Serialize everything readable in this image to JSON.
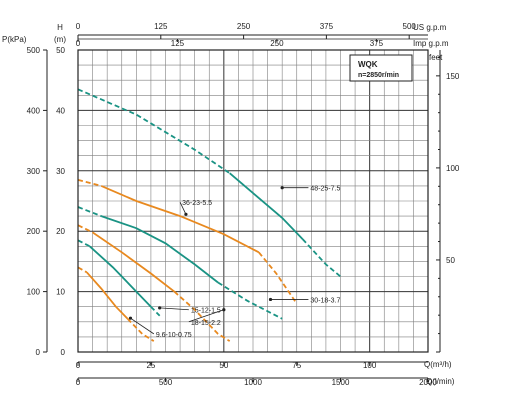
{
  "colors": {
    "green": "#1a9384",
    "orange": "#e8891f",
    "grid": "#7f7f7f",
    "frame": "#222222",
    "text": "#222222"
  },
  "labels": {
    "flow_us_unit": "US g.p.m",
    "flow_imp_unit": "Imp g.p.m",
    "pressure_unit": "P(kPa)",
    "head_unit_top": "H",
    "head_unit_sub": "(m)",
    "feet_unit": "feet",
    "flow_m3h_unit": "Q(m³/h)",
    "flow_lmin_unit": "Q(l/min)"
  },
  "legend": {
    "model": "WQK",
    "speed": "n=2850r/min"
  },
  "axes": {
    "us_gpm_ticks": [
      "0",
      "125",
      "250",
      "375",
      "500"
    ],
    "imp_gpm_ticks": [
      "0",
      "125",
      "250",
      "375"
    ],
    "pressure_ticks": [
      "0",
      "100",
      "200",
      "300",
      "400",
      "500"
    ],
    "head_ticks": [
      "0",
      "10",
      "20",
      "30",
      "40",
      "50"
    ],
    "feet_ticks": [
      "50",
      "100",
      "150"
    ],
    "m3h_ticks": [
      "0",
      "25",
      "50",
      "75",
      "100"
    ],
    "lmin_ticks": [
      "0",
      "500",
      "1000",
      "1500",
      "2000"
    ]
  },
  "chart_data": {
    "type": "line",
    "xlabel": "Q(m³/h)",
    "ylabel": "H (m)",
    "xlim": [
      0,
      120
    ],
    "ylim": [
      0,
      50
    ],
    "grid": true,
    "legend_position": "top-right",
    "series": [
      {
        "name": "48-25-7.5",
        "color": "green",
        "label_anchor": [
          70,
          27.2
        ],
        "label_at": [
          79,
          27.2
        ],
        "segments": [
          {
            "style": "dashed",
            "points": [
              [
                0,
                43.5
              ],
              [
                20,
                39.3
              ],
              [
                40,
                33.5
              ],
              [
                52,
                29.6
              ]
            ]
          },
          {
            "style": "solid",
            "points": [
              [
                52,
                29.6
              ],
              [
                60,
                26.3
              ],
              [
                70,
                22.2
              ],
              [
                77,
                18.7
              ]
            ]
          },
          {
            "style": "dashed",
            "points": [
              [
                77,
                18.7
              ],
              [
                85,
                14.5
              ],
              [
                90,
                12.5
              ]
            ]
          }
        ]
      },
      {
        "name": "36-23-5.5",
        "color": "orange",
        "label_anchor": [
          37,
          22.8
        ],
        "label_at": [
          35,
          24.8
        ],
        "segments": [
          {
            "style": "dashed",
            "points": [
              [
                0,
                28.5
              ],
              [
                8,
                27.5
              ]
            ]
          },
          {
            "style": "solid",
            "points": [
              [
                8,
                27.5
              ],
              [
                20,
                25
              ],
              [
                35,
                22.5
              ],
              [
                50,
                19.5
              ],
              [
                62,
                16.5
              ]
            ]
          },
          {
            "style": "dashed",
            "points": [
              [
                62,
                16.5
              ],
              [
                68,
                13
              ],
              [
                75,
                8
              ]
            ]
          }
        ]
      },
      {
        "name": "30-18-3.7",
        "color": "green",
        "label_anchor": [
          66,
          8.7
        ],
        "label_at": [
          79,
          8.7
        ],
        "segments": [
          {
            "style": "dashed",
            "points": [
              [
                0,
                24
              ],
              [
                8,
                22.5
              ]
            ]
          },
          {
            "style": "solid",
            "points": [
              [
                8,
                22.5
              ],
              [
                20,
                20.5
              ],
              [
                30,
                18
              ],
              [
                40,
                14.5
              ],
              [
                48,
                11.5
              ]
            ]
          },
          {
            "style": "dashed",
            "points": [
              [
                48,
                11.5
              ],
              [
                58,
                8.5
              ],
              [
                70,
                5.5
              ]
            ]
          }
        ]
      },
      {
        "name": "18-15-2.2",
        "color": "orange",
        "label_anchor": [
          50,
          7.0
        ],
        "label_at": [
          38,
          5
        ],
        "segments": [
          {
            "style": "dashed",
            "points": [
              [
                0,
                21
              ],
              [
                5,
                19.8
              ]
            ]
          },
          {
            "style": "solid",
            "points": [
              [
                5,
                19.8
              ],
              [
                15,
                16.5
              ],
              [
                25,
                13
              ],
              [
                33,
                10
              ]
            ]
          },
          {
            "style": "dashed",
            "points": [
              [
                33,
                10
              ],
              [
                40,
                7
              ],
              [
                48,
                3
              ],
              [
                52,
                1.8
              ]
            ]
          }
        ]
      },
      {
        "name": "15-12-1.5",
        "color": "green",
        "label_anchor": [
          28,
          7.3
        ],
        "label_at": [
          38,
          7
        ],
        "segments": [
          {
            "style": "dashed",
            "points": [
              [
                0,
                18.5
              ],
              [
                4,
                17.5
              ]
            ]
          },
          {
            "style": "solid",
            "points": [
              [
                4,
                17.5
              ],
              [
                12,
                14
              ],
              [
                20,
                10
              ],
              [
                25,
                7.5
              ]
            ]
          },
          {
            "style": "dashed",
            "points": [
              [
                25,
                7.5
              ],
              [
                28,
                6
              ]
            ]
          }
        ]
      },
      {
        "name": "9.6-10-0.75",
        "color": "orange",
        "label_anchor": [
          18,
          5.6
        ],
        "label_at": [
          26,
          3
        ],
        "segments": [
          {
            "style": "dashed",
            "points": [
              [
                0,
                14
              ],
              [
                3,
                13.2
              ]
            ]
          },
          {
            "style": "solid",
            "points": [
              [
                3,
                13.2
              ],
              [
                8,
                10.5
              ],
              [
                13,
                7.5
              ],
              [
                17,
                5.5
              ]
            ]
          },
          {
            "style": "dashed",
            "points": [
              [
                17,
                5.5
              ],
              [
                22,
                3
              ],
              [
                26,
                1.8
              ]
            ]
          }
        ]
      }
    ]
  }
}
